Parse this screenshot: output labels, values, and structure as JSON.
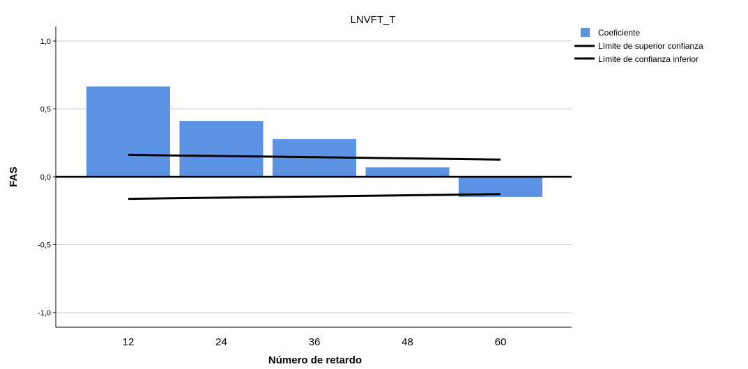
{
  "chart_data": {
    "type": "bar",
    "title": "LNVFT_T",
    "xlabel": "Número de retardo",
    "ylabel": "FAS",
    "categories": [
      "12",
      "24",
      "36",
      "48",
      "60"
    ],
    "y_ticks": [
      "1,0",
      "0,5",
      "0,0",
      "-0,5",
      "-1,0"
    ],
    "y_tick_values": [
      1.0,
      0.5,
      0.0,
      -0.5,
      -1.0
    ],
    "ylim": [
      -1.12,
      1.1
    ],
    "grid": true,
    "legend_position": "top-right",
    "series": [
      {
        "name": "Coeficiente",
        "kind": "bar",
        "color": "#5b93e2",
        "values": [
          0.665,
          0.41,
          0.278,
          0.07,
          -0.148
        ]
      },
      {
        "name": "Límite de superior confianza",
        "kind": "line",
        "color": "#000000",
        "values": [
          0.162,
          0.153,
          0.145,
          0.136,
          0.127
        ]
      },
      {
        "name": "Límite de confianza inferior",
        "kind": "line",
        "color": "#000000",
        "values": [
          -0.162,
          -0.153,
          -0.145,
          -0.136,
          -0.127
        ]
      }
    ]
  }
}
